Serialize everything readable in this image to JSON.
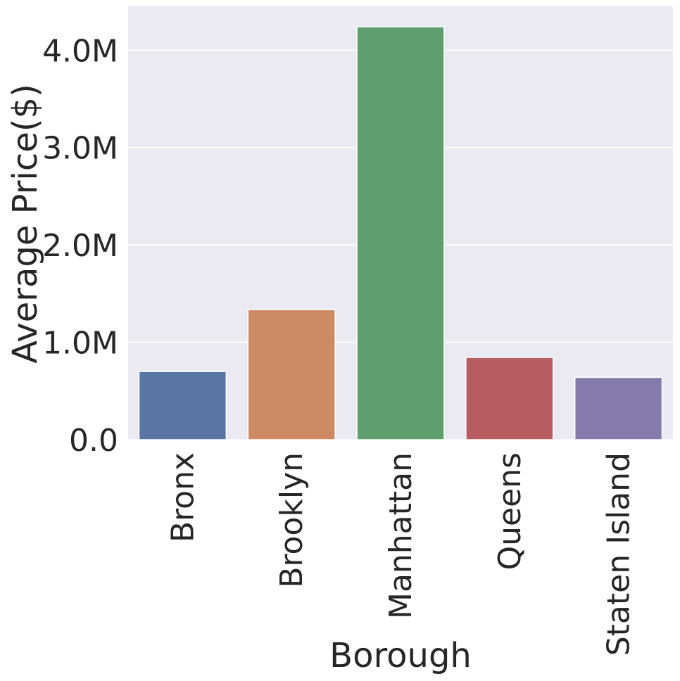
{
  "chart_data": {
    "type": "bar",
    "categories": [
      "Bronx",
      "Brooklyn",
      "Manhattan",
      "Queens",
      "Staten Island"
    ],
    "values": [
      700000,
      1335000,
      4240000,
      845000,
      640000
    ],
    "colors": [
      "#5875a4",
      "#cc8963",
      "#5f9e6e",
      "#b55d60",
      "#857aab"
    ],
    "title": "",
    "xlabel": "Borough",
    "ylabel": "Average Price($)",
    "ylim": [
      0,
      4450000
    ],
    "yticks": [
      0,
      1000000,
      2000000,
      3000000,
      4000000
    ],
    "ytick_labels": [
      "0.0",
      "1.0M",
      "2.0M",
      "3.0M",
      "4.0M"
    ],
    "grid": true,
    "background": "#eaeaf2",
    "grid_color": "#ffffff"
  }
}
